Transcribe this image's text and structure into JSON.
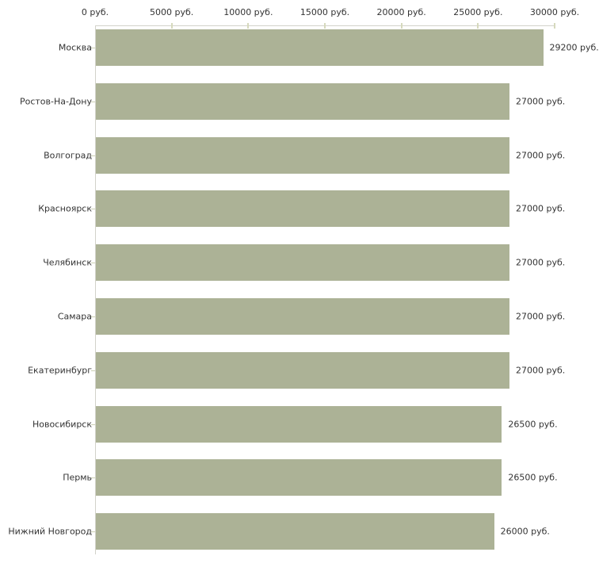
{
  "chart_data": {
    "type": "bar",
    "orientation": "horizontal",
    "title": "",
    "unit": "руб.",
    "categories": [
      "Москва",
      "Ростов-На-Дону",
      "Волгоград",
      "Красноярск",
      "Челябинск",
      "Самара",
      "Екатеринбург",
      "Новосибирск",
      "Пермь",
      "Нижний Новгород"
    ],
    "values": [
      29200,
      27000,
      27000,
      27000,
      27000,
      27000,
      27000,
      26500,
      26500,
      26000
    ],
    "value_labels": [
      "29200 руб.",
      "27000 руб.",
      "27000 руб.",
      "27000 руб.",
      "27000 руб.",
      "27000 руб.",
      "27000 руб.",
      "26500 руб.",
      "26500 руб.",
      "26000 руб."
    ],
    "axis": {
      "position": "top",
      "min": 0,
      "max": 30000,
      "tick_interval": 5000,
      "tick_labels": [
        "0 руб.",
        "5000 руб.",
        "10000 руб.",
        "15000 руб.",
        "20000 руб.",
        "25000 руб.",
        "30000 руб."
      ]
    },
    "grid": false,
    "legend": null,
    "colors": {
      "bar": "#acb296",
      "axis_line": "#d2d2ca",
      "tick_mark": "#d6d9bd",
      "text": "#333333",
      "background": "#ffffff"
    }
  }
}
